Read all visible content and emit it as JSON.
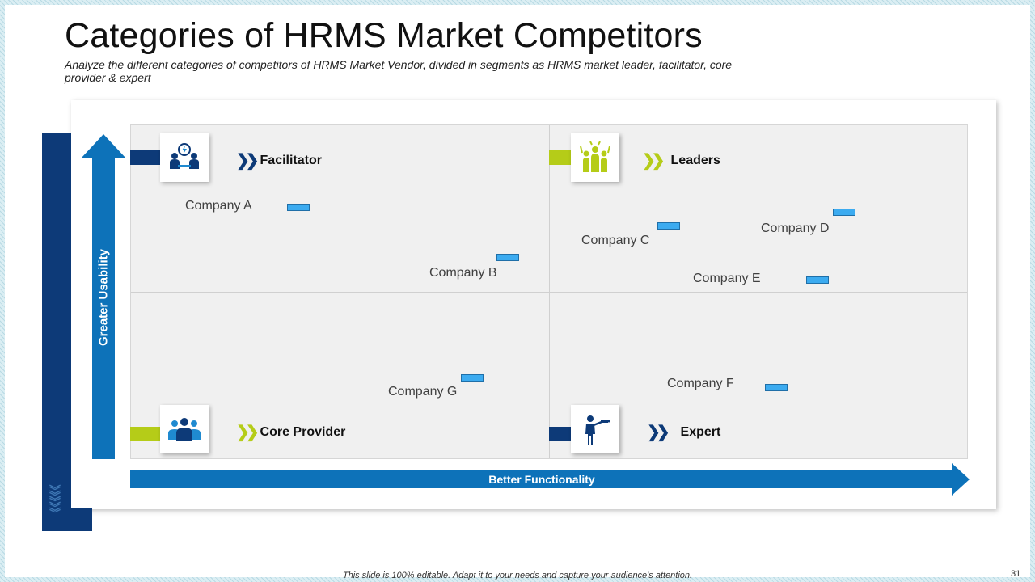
{
  "title": "Categories of HRMS Market Competitors",
  "subtitle": "Analyze the different categories of competitors of HRMS Market Vendor, divided in segments as HRMS market leader, facilitator, core provider & expert",
  "axes": {
    "y_label": "Greater Usability",
    "x_label": "Better Functionality"
  },
  "quadrants": {
    "facilitator": {
      "label": "Facilitator",
      "icon": "meeting-icon",
      "tab_color": "#0d3a78",
      "chevron_color": "#0d3a78"
    },
    "leaders": {
      "label": "Leaders",
      "icon": "team-celebration-icon",
      "tab_color": "#b5cc18",
      "chevron_color": "#b5cc18"
    },
    "core_provider": {
      "label": "Core Provider",
      "icon": "group-icon",
      "tab_color": "#b5cc18",
      "chevron_color": "#b5cc18"
    },
    "expert": {
      "label": "Expert",
      "icon": "presenter-icon",
      "tab_color": "#0d3a78",
      "chevron_color": "#0d3a78"
    }
  },
  "companies": {
    "a": "Company A",
    "b": "Company B",
    "c": "Company C",
    "d": "Company D",
    "e": "Company E",
    "f": "Company F",
    "g": "Company G"
  },
  "colors": {
    "navy": "#0d3a78",
    "blue": "#0d72b9",
    "lime": "#b5cc18",
    "marker": "#3cabf0"
  },
  "footer": "This slide is 100% editable. Adapt it to your needs and capture your audience's attention.",
  "page_number": "31"
}
